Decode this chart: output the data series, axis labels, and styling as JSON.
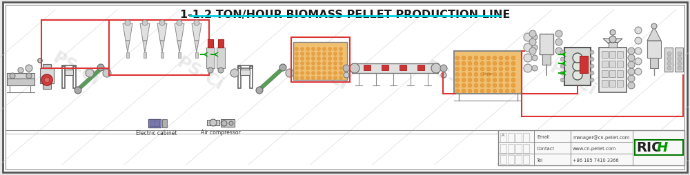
{
  "title": "1-1.2 TON/HOUR BIOMASS PELLET PRODUCTION LINE",
  "title_color": "#1a1a1a",
  "title_fontsize": 11.5,
  "underline_color": "#00d0e0",
  "bg_color": "#e8e8e8",
  "inner_bg": "#ffffff",
  "border_outer": "#555555",
  "border_inner": "#888888",
  "red": "#dd3333",
  "gray": "#888888",
  "dgray": "#555555",
  "lgray": "#cccccc",
  "green": "#00aa00",
  "orange_fill": "#f0c080",
  "wm_color": "#d0d0d0",
  "wm_alpha": 0.45,
  "email": "manager@cn-pellet.com",
  "contact": "www.cn-pellet.com",
  "tel": "+86 185 7410 3366",
  "legend_electric": "Electric cabinet",
  "legend_air": "Air compressor"
}
